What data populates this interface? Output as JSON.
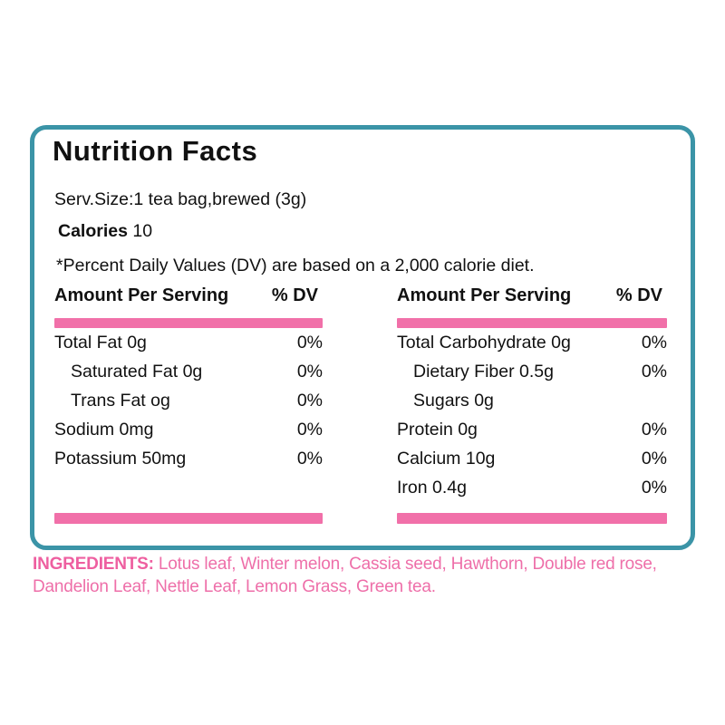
{
  "label": {
    "title": "Nutrition Facts",
    "serving": "Serv.Size:1 tea bag,brewed (3g)",
    "calories_label": "Calories",
    "calories_value": "10",
    "dv_note": "*Percent Daily Values (DV) are based on a 2,000 calorie diet.",
    "columns": [
      {
        "header": "Amount Per Serving",
        "dv_header": "% DV",
        "rows": [
          {
            "name": "Total Fat 0g",
            "dv": "0%",
            "indent": 0
          },
          {
            "name": "Saturated Fat 0g",
            "dv": "0%",
            "indent": 1
          },
          {
            "name": "Trans Fat og",
            "dv": "0%",
            "indent": 1
          },
          {
            "name": "Sodium 0mg",
            "dv": "0%",
            "indent": 0
          },
          {
            "name": "Potassium 50mg",
            "dv": "0%",
            "indent": 0
          }
        ]
      },
      {
        "header": "Amount Per Serving",
        "dv_header": "% DV",
        "rows": [
          {
            "name": "Total Carbohydrate 0g",
            "dv": "0%",
            "indent": 0
          },
          {
            "name": "Dietary Fiber 0.5g",
            "dv": "0%",
            "indent": 1
          },
          {
            "name": "Sugars 0g",
            "dv": "",
            "indent": 1
          },
          {
            "name": "Protein 0g",
            "dv": "0%",
            "indent": 0
          },
          {
            "name": "Calcium 10g",
            "dv": "0%",
            "indent": 0
          },
          {
            "name": "Iron 0.4g",
            "dv": "0%",
            "indent": 0
          }
        ]
      }
    ],
    "ingredients_label": "INGREDIENTS:",
    "ingredients_text": "Lotus leaf, Winter melon, Cassia seed, Hawthorn, Double red rose, Dandelion Leaf, Nettle Leaf, Lemon Grass, Green tea.",
    "colors": {
      "border_teal": "#3b94a7",
      "bar_pink": "#f170a9",
      "ingredients_pink": "#ee6fa9"
    }
  }
}
